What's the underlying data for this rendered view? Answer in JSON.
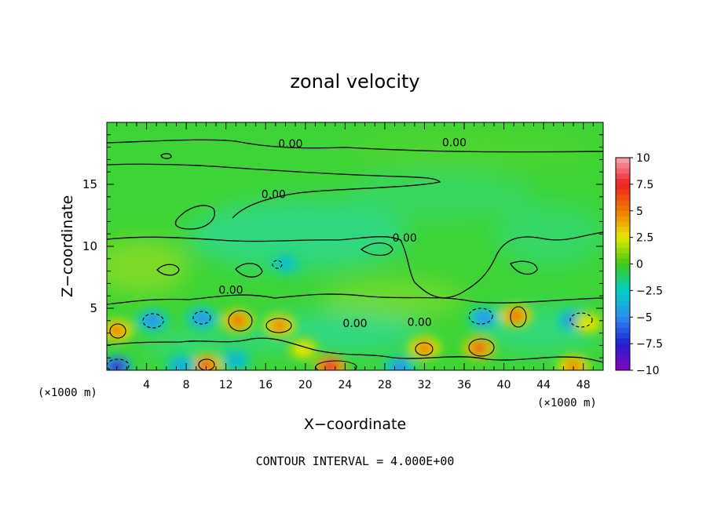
{
  "chart_data": {
    "type": "heatmap",
    "title": "zonal velocity",
    "xlabel": "X−coordinate",
    "ylabel": "Z−coordinate",
    "x_unit": "(×1000 m)",
    "x_unit_right": "(×1000 m)",
    "xlim": [
      0,
      50
    ],
    "ylim": [
      0,
      20
    ],
    "x_ticks": [
      4,
      8,
      12,
      16,
      20,
      24,
      28,
      32,
      36,
      40,
      44,
      48
    ],
    "y_ticks": [
      5,
      10,
      15
    ],
    "colorbar": {
      "ticks": [
        10,
        7.5,
        5,
        2.5,
        0,
        -2.5,
        -5,
        -7.5,
        -10
      ],
      "tick_labels": [
        "10",
        "7.5",
        "5",
        "2.5",
        "0",
        "−2.5",
        "−5",
        "−7.5",
        "−10"
      ],
      "colors": [
        "#f7a6b0",
        "#f02020",
        "#f07a00",
        "#e8e800",
        "#40c818",
        "#00d0c8",
        "#2a90f0",
        "#2020d0",
        "#8a00c0"
      ]
    },
    "contour_labels": [
      {
        "text": "0.00",
        "x": 18.5,
        "z": 18.3
      },
      {
        "text": "0.00",
        "x": 35.0,
        "z": 18.4
      },
      {
        "text": "0.00",
        "x": 16.8,
        "z": 14.2
      },
      {
        "text": "0.00",
        "x": 30.0,
        "z": 10.7
      },
      {
        "text": "0.00",
        "x": 12.5,
        "z": 6.5
      },
      {
        "text": "0.00",
        "x": 25.0,
        "z": 3.8
      },
      {
        "text": "0.00",
        "x": 31.5,
        "z": 3.9
      }
    ],
    "features": [
      {
        "x": 4.6,
        "z": 4.0,
        "v": -5
      },
      {
        "x": 9.6,
        "z": 4.2,
        "v": -5
      },
      {
        "x": 13.2,
        "z": 4.0,
        "v": 5.5
      },
      {
        "x": 17.4,
        "z": 3.6,
        "v": 5
      },
      {
        "x": 19.8,
        "z": 1.7,
        "v": 2.5
      },
      {
        "x": 38.0,
        "z": 4.2,
        "v": -5
      },
      {
        "x": 37.5,
        "z": 1.8,
        "v": 6
      },
      {
        "x": 41.2,
        "z": 4.4,
        "v": 5.5
      },
      {
        "x": 47.0,
        "z": 4.0,
        "v": -5.5
      },
      {
        "x": 1.0,
        "z": 0.3,
        "v": -8
      },
      {
        "x": 1.0,
        "z": 3.2,
        "v": 5
      },
      {
        "x": 10.0,
        "z": 0.4,
        "v": 6
      },
      {
        "x": 22.5,
        "z": 0.3,
        "v": 7.5
      },
      {
        "x": 29.5,
        "z": 0.2,
        "v": -5
      },
      {
        "x": 32.0,
        "z": 1.8,
        "v": 5
      },
      {
        "x": 7.5,
        "z": 0.4,
        "v": -4
      },
      {
        "x": 47.0,
        "z": 0.3,
        "v": 5
      },
      {
        "x": 18.0,
        "z": 8.6,
        "v": -3
      },
      {
        "x": 13.0,
        "z": 0.8,
        "v": -3.5
      },
      {
        "x": 48.5,
        "z": 3.8,
        "v": 2.5
      }
    ]
  },
  "footer": "CONTOUR INTERVAL = 4.000E+00"
}
